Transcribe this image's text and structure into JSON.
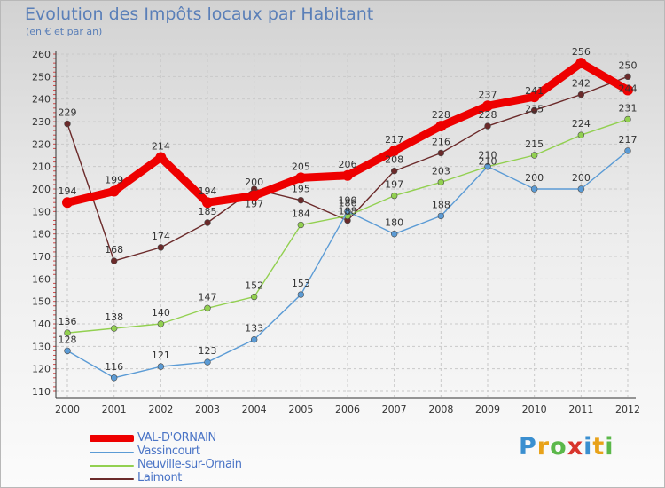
{
  "header": {
    "title": "Evolution des Impôts locaux par Habitant",
    "subtitle": "(en € et par an)"
  },
  "logo": {
    "letters": [
      "P",
      "r",
      "o",
      "x",
      "i",
      "t",
      "i"
    ],
    "colors": [
      "#3a8fd0",
      "#e8a21a",
      "#5bb84a",
      "#d8342c",
      "#3a8fd0",
      "#e8a21a",
      "#5bb84a"
    ]
  },
  "chart_data": {
    "type": "line",
    "title": "Evolution des Impôts locaux par Habitant",
    "subtitle": "(en € et par an)",
    "xlabel": "",
    "ylabel": "",
    "x": [
      "2000",
      "2001",
      "2002",
      "2003",
      "2004",
      "2005",
      "2006",
      "2007",
      "2008",
      "2009",
      "2010",
      "2011",
      "2012"
    ],
    "ylim": [
      110,
      260
    ],
    "yticks": [
      110,
      120,
      130,
      140,
      150,
      160,
      170,
      180,
      190,
      200,
      210,
      220,
      230,
      240,
      250,
      260
    ],
    "grid": true,
    "legend_position": "bottom-left",
    "series": [
      {
        "name": "VAL-D'ORNAIN",
        "color": "#ee0000",
        "values": [
          194,
          199,
          214,
          194,
          197,
          205,
          206,
          217,
          228,
          237,
          241,
          256,
          244
        ],
        "labels": [
          "194",
          "199",
          "214",
          "194",
          "197",
          "205",
          "206",
          "217",
          "228",
          "237",
          "241",
          "256",
          "244"
        ]
      },
      {
        "name": "Vassincourt",
        "color": "#5b9bd5",
        "values": [
          128,
          116,
          121,
          123,
          133,
          153,
          190,
          180,
          188,
          210,
          200,
          200,
          217
        ],
        "labels": [
          "128",
          "116",
          "121",
          "123",
          "133",
          "153",
          "190",
          "180",
          "188",
          "210",
          "200",
          "200",
          "217"
        ]
      },
      {
        "name": "Neuville-sur-Ornain",
        "color": "#92d050",
        "values": [
          136,
          138,
          140,
          147,
          152,
          184,
          188,
          197,
          203,
          210,
          215,
          224,
          231
        ],
        "labels": [
          "136",
          "138",
          "140",
          "147",
          "152",
          "184",
          "188",
          "197",
          "203",
          "210",
          "215",
          "224",
          "231"
        ]
      },
      {
        "name": "Laimont",
        "color": "#6b2a2a",
        "values": [
          229,
          168,
          174,
          185,
          200,
          195,
          186,
          208,
          216,
          228,
          235,
          242,
          250
        ],
        "labels": [
          "229",
          "168",
          "174",
          "185",
          "200",
          "195",
          "186",
          "208",
          "216",
          "228",
          "235",
          "242",
          "250"
        ]
      }
    ]
  }
}
